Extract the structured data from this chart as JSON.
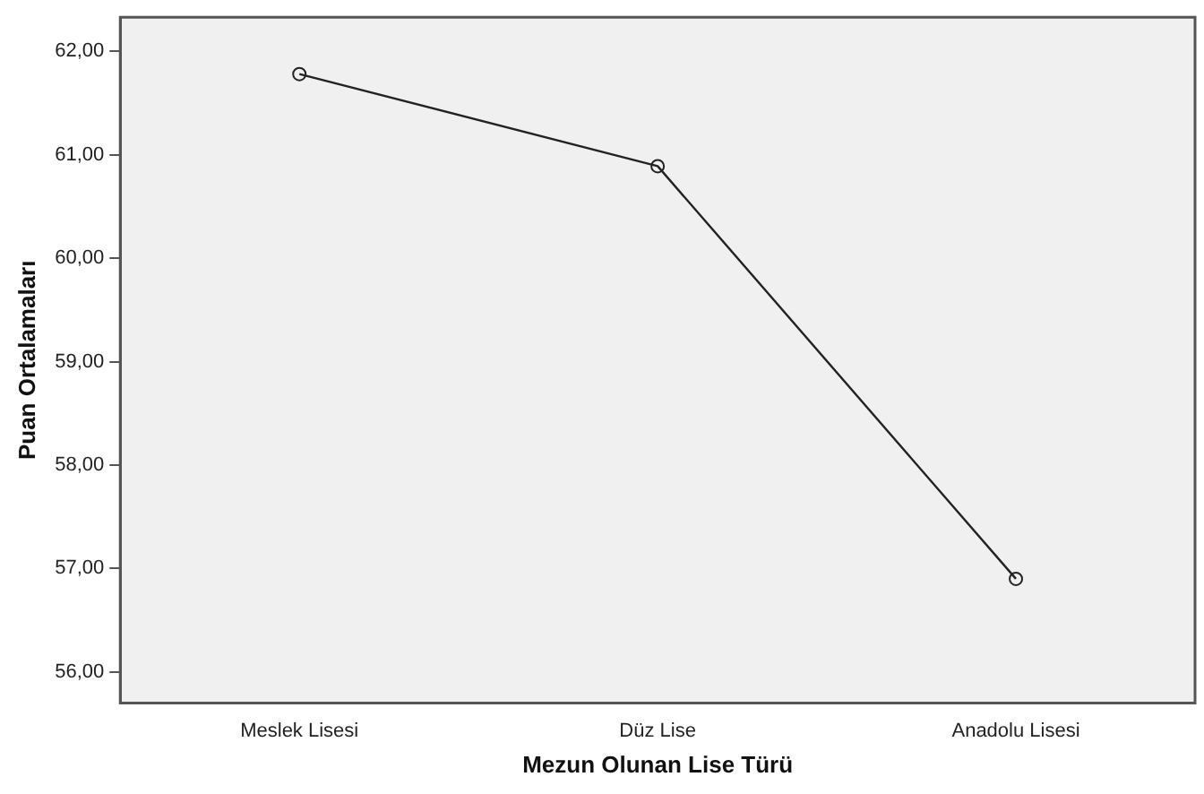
{
  "chart_data": {
    "type": "line",
    "xlabel": "Mezun Olunan Lise Türü",
    "ylabel": "Puan Ortalamaları",
    "categories": [
      "Meslek Lisesi",
      "Düz Lise",
      "Anadolu Lisesi"
    ],
    "series": [
      {
        "color": "#222222",
        "values": [
          61.78,
          60.89,
          56.9
        ]
      }
    ],
    "ylim": [
      55.7,
      62.33
    ],
    "yticks": [
      {
        "value": 56,
        "label": "56,00"
      },
      {
        "value": 57,
        "label": "57,00"
      },
      {
        "value": 58,
        "label": "58,00"
      },
      {
        "value": 59,
        "label": "59,00"
      },
      {
        "value": 60,
        "label": "60,00"
      },
      {
        "value": 61,
        "label": "61,00"
      },
      {
        "value": 62,
        "label": "62,00"
      }
    ],
    "grid": false,
    "legend": false,
    "marker": "circle",
    "line_style": "solid"
  }
}
